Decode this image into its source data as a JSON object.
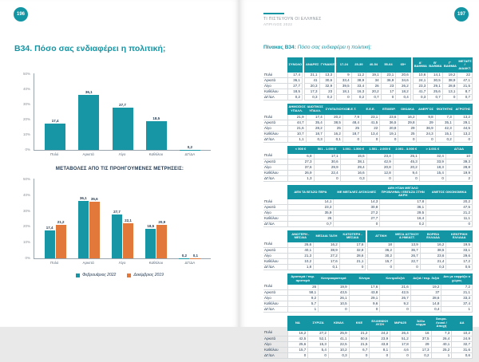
{
  "colors": {
    "teal": "#1495A4",
    "orange": "#E2793B",
    "navy": "#243B53",
    "axis_gray": "#8a9097"
  },
  "left_page": {
    "page_number": "196",
    "title": "B34. Πόσο σας ενδιαφέρει η πολιτική;"
  },
  "right_page": {
    "page_number": "197",
    "header_title": "ΤΙ ΠΙΣΤΕΥΟΥΝ ΟΙ ΕΛΛΗΝΕΣ",
    "header_subtitle": "ΑΠΡΙΛΙΟΣ 2022",
    "table_caption_prefix": "Πίνακας Β34:",
    "table_caption": "Πόσο σας ενδιαφέρει η πολιτική;"
  },
  "chart_data": [
    {
      "type": "bar",
      "title": "",
      "categories": [
        "Πολύ",
        "Αρκετά",
        "Λίγο",
        "Καθόλου",
        "ΔΓ/ΔΑ"
      ],
      "values": [
        17.4,
        36.1,
        27.7,
        18.5,
        0.2
      ],
      "ylim": [
        0,
        50
      ],
      "yticks": [
        "0%",
        "10%",
        "20%",
        "30%",
        "40%",
        "50%"
      ],
      "bar_color": "#1797A6",
      "xlabel": "",
      "ylabel": "",
      "grid": false,
      "legend": "none"
    },
    {
      "type": "bar",
      "title": "ΜΕΤΑΒΟΛΕΣ ΑΠΟ ΤΙΣ ΠΡΟΗΓΟΥΜΕΝΕΣ ΜΕΤΡΗΣΕΙΣ:",
      "categories": [
        "Πολύ",
        "Αρκετά",
        "Λίγο",
        "Καθόλου",
        "ΔΓ/ΔΑ"
      ],
      "series": [
        {
          "name": "Φεβρουάριος 2022",
          "color": "#1797A6",
          "values": [
            17.4,
            36.1,
            27.7,
            18.5,
            0.2
          ]
        },
        {
          "name": "Δεκέμβριος 2019",
          "color": "#E2793B",
          "values": [
            21.2,
            35.6,
            22.1,
            20.9,
            0.1
          ]
        }
      ],
      "ylim": [
        0,
        50
      ],
      "yticks": [
        "0%",
        "10%",
        "20%",
        "30%",
        "40%",
        "50%"
      ],
      "grid": false,
      "legend": "bottom"
    }
  ],
  "tables": [
    {
      "name": "gender-age-education",
      "groups": [
        [
          "ΣΥΝΟΛΟ"
        ],
        [
          "ΑΝΔΡΕΣ",
          "ΓΥΝΑΙΚΕΣ"
        ],
        [
          "17-24",
          "25-39",
          "40-54",
          "55-64",
          "65+"
        ],
        [
          "Α' ΒΑΘΜΙΑ",
          "Β' ΒΑΘΜΙΑ",
          "Γ' ΒΑΘΜΙΑ",
          "ΜΕΤΑΠΤ. / ΔΙΔΑΚΤ."
        ]
      ],
      "rows": [
        {
          "label": "Πολύ",
          "values": [
            17.4,
            21.1,
            13.3,
            9,
            11.2,
            19.1,
            23.1,
            20.6,
            10.6,
            14.1,
            19.2,
            22
          ]
        },
        {
          "label": "Αρκετά",
          "values": [
            36.1,
            41,
            30.6,
            33.4,
            38.9,
            34,
            36.9,
            34.6,
            24.1,
            30.5,
            38.9,
            47.1
          ]
        },
        {
          "label": "Λίγο",
          "values": [
            27.7,
            20.3,
            32.9,
            39.5,
            33.4,
            26,
            23,
            26.2,
            23.3,
            29.1,
            28.8,
            21.5
          ]
        },
        {
          "label": "Καθόλου",
          "values": [
            18.5,
            17.3,
            23,
            18.1,
            16.3,
            20.2,
            17,
            18.2,
            41.7,
            25.6,
            13.1,
            8.7
          ]
        },
        {
          "label": "ΔΓ/ΔΑ",
          "values": [
            0.2,
            0.3,
            0.2,
            0,
            0.2,
            0.7,
            0,
            0.4,
            0.3,
            0.7,
            0,
            0.7
          ]
        }
      ]
    },
    {
      "name": "occupation",
      "groups": [
        [
          "ΔΗΜΟΣΙΟΣ ΥΠΑΛΛ.",
          "ΙΔΙΩΤΙΚΟΣ ΥΠΑΛΛ.",
          "ΣΥΝΤΑΞΙΟΥΧΟΣ",
          "Ε.Ε.Τ.",
          "Ε.Ε.Ε.",
          "ΕΠΙΧΕΙΡ.",
          "ΟΙΚΙΑΚΑ",
          "ΑΝΕΡΓΟΣ",
          "ΦΟΙΤΗΤΗΣ",
          "ΑΓΡΟΤΗΣ"
        ]
      ],
      "rows": [
        {
          "label": "Πολύ",
          "values": [
            21.9,
            17.4,
            20.2,
            7.9,
            23.1,
            23.6,
            16.2,
            9.8,
            7.3,
            13.2
          ]
        },
        {
          "label": "Αρκετά",
          "values": [
            44.7,
            35.4,
            38.5,
            48.4,
            41.5,
            36.5,
            29.8,
            29,
            35.1,
            29.1
          ]
        },
        {
          "label": "Λίγο",
          "values": [
            21.6,
            28.2,
            25,
            25,
            22,
            20.8,
            29,
            36.9,
            42.3,
            44.5
          ]
        },
        {
          "label": "Καθόλου",
          "values": [
            10.7,
            18.7,
            16.2,
            18.7,
            13.4,
            19.1,
            25,
            24.3,
            15.1,
            13.2
          ]
        },
        {
          "label": "ΔΓ/ΔΑ",
          "values": [
            1.1,
            0.3,
            0.1,
            0,
            0,
            0,
            0,
            0,
            0.2,
            0
          ]
        }
      ]
    },
    {
      "name": "income",
      "groups": [
        [
          "< 500 €",
          "501 - 1.000 €",
          "1.001 - 1.500 €",
          "1.501 - 2.000 €",
          "2.001 - 3.000 €",
          "> 3.001 €",
          "ΔΓ/ΔΑ"
        ]
      ],
      "rows": [
        {
          "label": "Πολύ",
          "values": [
            6.8,
            17.1,
            15.6,
            23.4,
            25.1,
            32.4,
            10
          ]
        },
        {
          "label": "Αρκετά",
          "values": [
            27.3,
            30.6,
            38.1,
            42.9,
            45.3,
            33.9,
            39.3
          ]
        },
        {
          "label": "Λίγο",
          "values": [
            37.6,
            29.9,
            29.4,
            20.8,
            20.2,
            18.3,
            28.8
          ]
        },
        {
          "label": "Καθόλου",
          "values": [
            26.9,
            22.4,
            16.6,
            12.8,
            9.4,
            15.4,
            19.9
          ]
        },
        {
          "label": "ΔΓ/ΔΑ",
          "values": [
            1.3,
            0,
            0.3,
            0,
            0,
            0,
            2
          ]
        }
      ]
    },
    {
      "name": "financial-situation",
      "groups": [
        [
          "ΔΕΝ ΤΑ ΒΓΑΖΩ ΠΕΡΑ",
          "ΜΕ ΜΕΓΑΛΕΣ ΔΥΣΚΟΛΙΕΣ",
          "ΔΕΝ ΗΤΑΝ ΜΕΓΑΛΟ ΠΡΟΒΛΗΜΑ / ΕΒΓΑΖΑ ΣΤΗΝ ΑΚΡΗ",
          "ΑΝΕΤΟΣ ΟΙΚΟΝΟΜΙΚΑ"
        ]
      ],
      "rows": [
        {
          "label": "Πολύ",
          "values": [
            14.1,
            14.3,
            17.8,
            20.2
          ]
        },
        {
          "label": "Αρκετά",
          "values": [
            23.3,
            30.8,
            36.1,
            47.5
          ]
        },
        {
          "label": "Λίγο",
          "values": [
            35.9,
            27.2,
            29.5,
            21.2
          ]
        },
        {
          "label": "Καθόλου",
          "values": [
            26,
            27.7,
            16.4,
            11.1
          ]
        },
        {
          "label": "ΔΓ/ΔΑ",
          "values": [
            0.7,
            0,
            0.2,
            0
          ]
        }
      ]
    },
    {
      "name": "class-region",
      "groups": [
        [
          "ΑΝΩΤΕΡΗ - ΜΕΣΑΙΑ",
          "ΜΕΣΑΙΑ ΤΑΞΗ",
          "ΚΑΤΩΤΕΡΗ - ΜΕΣΑΙΑ"
        ],
        [
          "ΑΤΤΙΚΗ",
          "ΜΕΣΑ ΑΣΤΙΚΟΥ & ΗΜΙΑΣΤ.",
          "ΒΟΡΕΙΑ ΕΛΛΑΔΑ",
          "ΚΕΝΤΡΙΚΗ ΕΛΛΑΔΑ"
        ]
      ],
      "rows": [
        {
          "label": "Πολύ",
          "values": [
            26.6,
            16.2,
            17.6,
            18,
            13.9,
            16.2,
            19.5
          ]
        },
        {
          "label": "Αρκετά",
          "values": [
            40.1,
            38.9,
            32.8,
            36.2,
            36.7,
            38.5,
            33.1
          ]
        },
        {
          "label": "Λίγο",
          "values": [
            21.3,
            27.2,
            28.6,
            30.2,
            26.7,
            23.6,
            29.6
          ]
        },
        {
          "label": "Καθόλου",
          "values": [
            10.2,
            17.6,
            21.1,
            15.7,
            22.7,
            21.4,
            17.2
          ]
        },
        {
          "label": "ΔΓ/ΔΑ",
          "values": [
            1.8,
            0.1,
            0,
            0,
            0,
            0.3,
            0.5
          ]
        }
      ]
    },
    {
      "name": "ideology",
      "groups": [
        [
          "Αριστερά / περ. αριστερά",
          "Κεντροαριστερά",
          "Κέντρο",
          "Κεντροδεξιά",
          "Δεξιά / περ. δεξιά",
          "Δεν με εκφράζει ο χώρος"
        ]
      ],
      "rows": [
        {
          "label": "Πολύ",
          "values": [
            26,
            19.9,
            17.6,
            21.6,
            19.2,
            7.2
          ]
        },
        {
          "label": "Αρκετά",
          "values": [
            58.1,
            43.5,
            43.8,
            42.5,
            37,
            21.1
          ]
        },
        {
          "label": "Λίγο",
          "values": [
            9.2,
            26.1,
            29.1,
            26.7,
            28.6,
            33.3
          ]
        },
        {
          "label": "Καθόλου",
          "values": [
            5.7,
            10.5,
            9.6,
            9.2,
            14.8,
            37.4
          ]
        },
        {
          "label": "ΔΓ/ΔΑ",
          "values": [
            1,
            0,
            0,
            0,
            0.4,
            1
          ]
        }
      ]
    },
    {
      "name": "party-vote",
      "groups": [
        [
          "ΝΔ",
          "ΣΥΡΙΖΑ",
          "ΚΙΝΑΛ",
          "ΚΚΕ",
          "ΕΛΛΗΝΙΚΗ ΛΥΣΗ",
          "ΜέΡΑ25",
          "Άλλο κόμμα",
          "Άκυρο-Λευκό / Αποχή",
          "ΔΑ"
        ]
      ],
      "rows": [
        {
          "label": "Πολύ",
          "values": [
            16.2,
            27.2,
            25.9,
            21.2,
            24.2,
            26.4,
            16,
            7.3,
            10.2
          ]
        },
        {
          "label": "Αρκετά",
          "values": [
            42.5,
            52.1,
            41.1,
            50.6,
            23.9,
            51.2,
            37.5,
            26.4,
            24.9
          ]
        },
        {
          "label": "Λίγο",
          "values": [
            25.6,
            15.3,
            22.5,
            21.5,
            43.8,
            17.8,
            29,
            40.1,
            32.7
          ]
        },
        {
          "label": "Καθόλου",
          "values": [
            15.7,
            5.4,
            10.2,
            6.7,
            8.1,
            4.6,
            17.3,
            25.2,
            31.6
          ]
        },
        {
          "label": "ΔΓ/ΔΑ",
          "values": [
            0,
            0,
            0.3,
            0,
            0,
            0,
            0.2,
            1,
            0.6
          ]
        }
      ]
    }
  ]
}
